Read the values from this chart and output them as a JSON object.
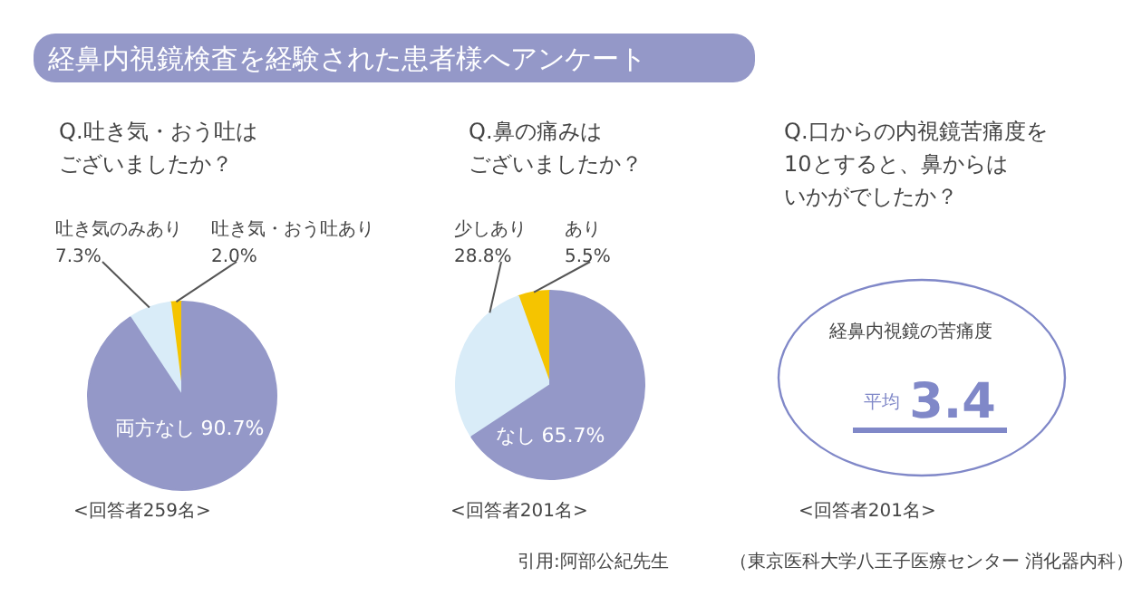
{
  "chart_data": [
    {
      "type": "pie",
      "title": "経鼻内視鏡検査を経験された患者様へアンケート",
      "subtitle": "Q.吐き気・おう吐はございましたか？",
      "categories": [
        "吐き気・おう吐あり",
        "吐き気のみあり",
        "両方なし"
      ],
      "values": [
        2.0,
        7.3,
        90.7
      ],
      "value_labels": [
        "2.0%",
        "7.3%",
        "90.7%"
      ],
      "colors": [
        "#f5c400",
        "#d9ecf8",
        "#9498c8"
      ],
      "annotations": [
        "<回答者259名>"
      ]
    },
    {
      "type": "pie",
      "subtitle": "Q.鼻の痛みはございましたか？",
      "categories": [
        "あり",
        "少しあり",
        "なし"
      ],
      "values": [
        5.5,
        28.8,
        65.7
      ],
      "value_labels": [
        "5.5%",
        "28.8%",
        "65.7%"
      ],
      "colors": [
        "#f5c400",
        "#d9ecf8",
        "#9498c8"
      ],
      "annotations": [
        "<回答者201名>",
        "引用:阿部公紀先生"
      ]
    },
    {
      "type": "other",
      "subtitle": "Q.口からの内視鏡苦痛度を10とすると、鼻からはいかがでしたか？",
      "annotations": [
        "経鼻内視鏡の苦痛度",
        "平均",
        "3.4",
        "<回答者201名>",
        "（東京医科大学八王子医療センター 消化器内科）"
      ]
    }
  ]
}
